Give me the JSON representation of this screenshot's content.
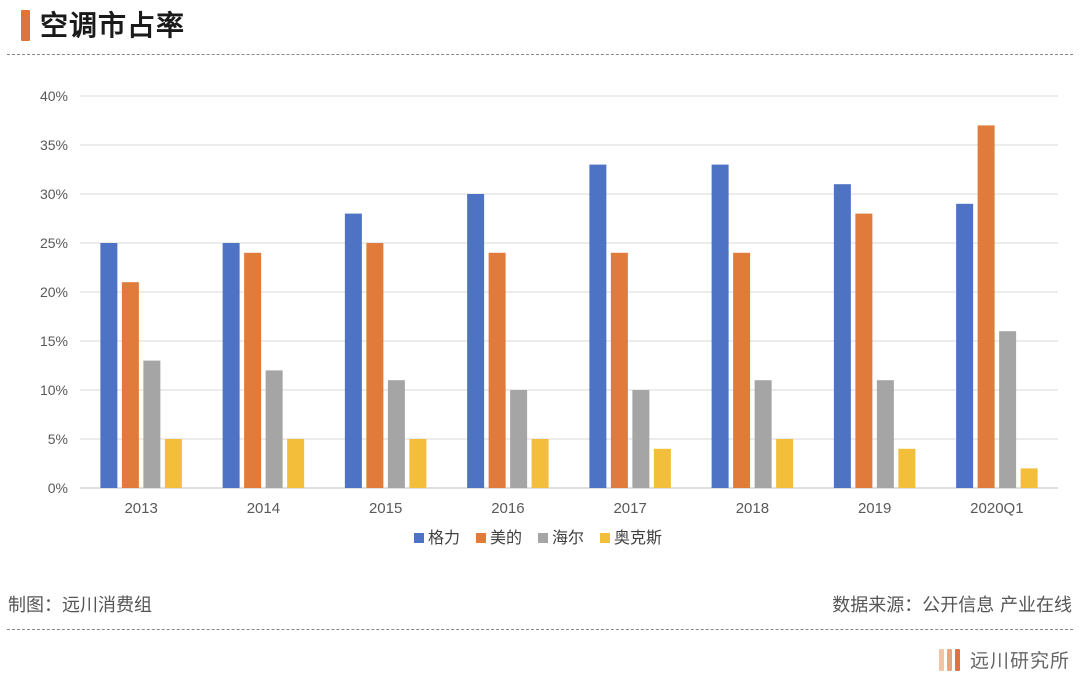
{
  "header": {
    "title": "空调市占率"
  },
  "footer": {
    "made_by": "制图：远川消费组",
    "source": "数据来源：公开信息 产业在线",
    "brand": "远川研究所"
  },
  "colors": {
    "accent": "#e0743c"
  },
  "chart_data": {
    "type": "bar",
    "categories": [
      "2013",
      "2014",
      "2015",
      "2016",
      "2017",
      "2018",
      "2019",
      "2020Q1"
    ],
    "series": [
      {
        "name": "格力",
        "color": "#4e73c4",
        "values": [
          25,
          25,
          28,
          30,
          33,
          33,
          31,
          29
        ]
      },
      {
        "name": "美的",
        "color": "#e07b3c",
        "values": [
          21,
          24,
          25,
          24,
          24,
          24,
          28,
          37
        ]
      },
      {
        "name": "海尔",
        "color": "#a5a5a5",
        "values": [
          13,
          12,
          11,
          10,
          10,
          11,
          11,
          16
        ]
      },
      {
        "name": "奥克斯",
        "color": "#f3bf3a",
        "values": [
          5,
          5,
          5,
          5,
          4,
          5,
          4,
          2
        ]
      }
    ],
    "yticks": [
      "0%",
      "5%",
      "10%",
      "15%",
      "20%",
      "25%",
      "30%",
      "35%",
      "40%"
    ],
    "ylim": [
      0,
      40
    ],
    "grid": true,
    "legend_position": "bottom"
  }
}
